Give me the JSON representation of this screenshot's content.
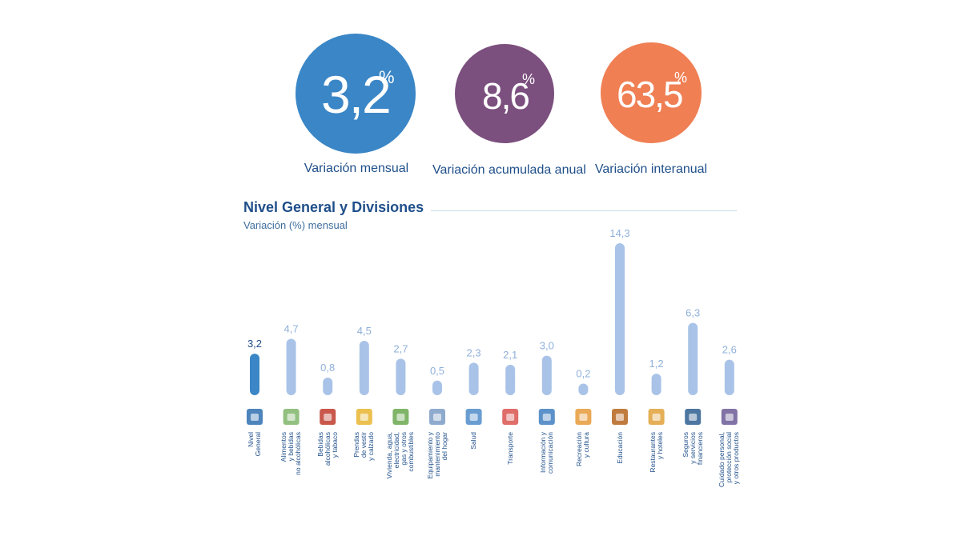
{
  "kpis": [
    {
      "value": "3,2",
      "unit": "%",
      "label": "Variación mensual",
      "color": "#3a86c6"
    },
    {
      "value": "8,6",
      "unit": "%",
      "label": "Variación acumulada anual",
      "color": "#7b4f7e"
    },
    {
      "value": "63,5",
      "unit": "%",
      "label": "Variación interanual",
      "color": "#f07f54"
    }
  ],
  "section": {
    "title": "Nivel General y Divisiones",
    "subtitle": "Variación (%) mensual"
  },
  "colors": {
    "highlight_bar": "#3a86c6",
    "bar": "#a9c3e8",
    "highlight_label": "#1f4f8a",
    "label": "#8fb0d9"
  },
  "chart_data": {
    "type": "bar",
    "title": "Nivel General y Divisiones",
    "subtitle": "Variación (%) mensual",
    "categories": [
      "Nivel\nGeneral",
      "Alimentos\ny bebidas\nno alcohólicas",
      "Bebidas\nalcohólicas\ny tabaco",
      "Prendas\nde vestir\ny calzado",
      "Vivienda, agua,\nelectricidad,\ngas y otros\ncombustibles",
      "Equipamiento y\nmantenimiento\ndel hogar",
      "Salud",
      "Transporte",
      "Información y\ncomunicación",
      "Recreación\ny cultura",
      "Educación",
      "Restaurantes\ny hoteles",
      "Seguros\ny servicios\nfinancieros",
      "Cuidado personal,\nprotección social\ny otros productos"
    ],
    "values": [
      3.2,
      4.7,
      0.8,
      4.5,
      2.7,
      0.5,
      2.3,
      2.1,
      3.0,
      0.2,
      14.3,
      1.2,
      6.3,
      2.6
    ],
    "value_labels": [
      "3,2",
      "4,7",
      "0,8",
      "4,5",
      "2,7",
      "0,5",
      "2,3",
      "2,1",
      "3,0",
      "0,2",
      "14,3",
      "1,2",
      "6,3",
      "2,6"
    ],
    "icons": [
      "chart-icon",
      "food-icon",
      "bottle-icon",
      "jacket-icon",
      "house-icon",
      "washer-icon",
      "doctor-icon",
      "car-plane-icon",
      "computer-icon",
      "tickets-icon",
      "school-icon",
      "cloche-icon",
      "bank-icon",
      "cosmetics-icon"
    ],
    "highlight_index": 0,
    "ylim": [
      0,
      14.3
    ]
  }
}
